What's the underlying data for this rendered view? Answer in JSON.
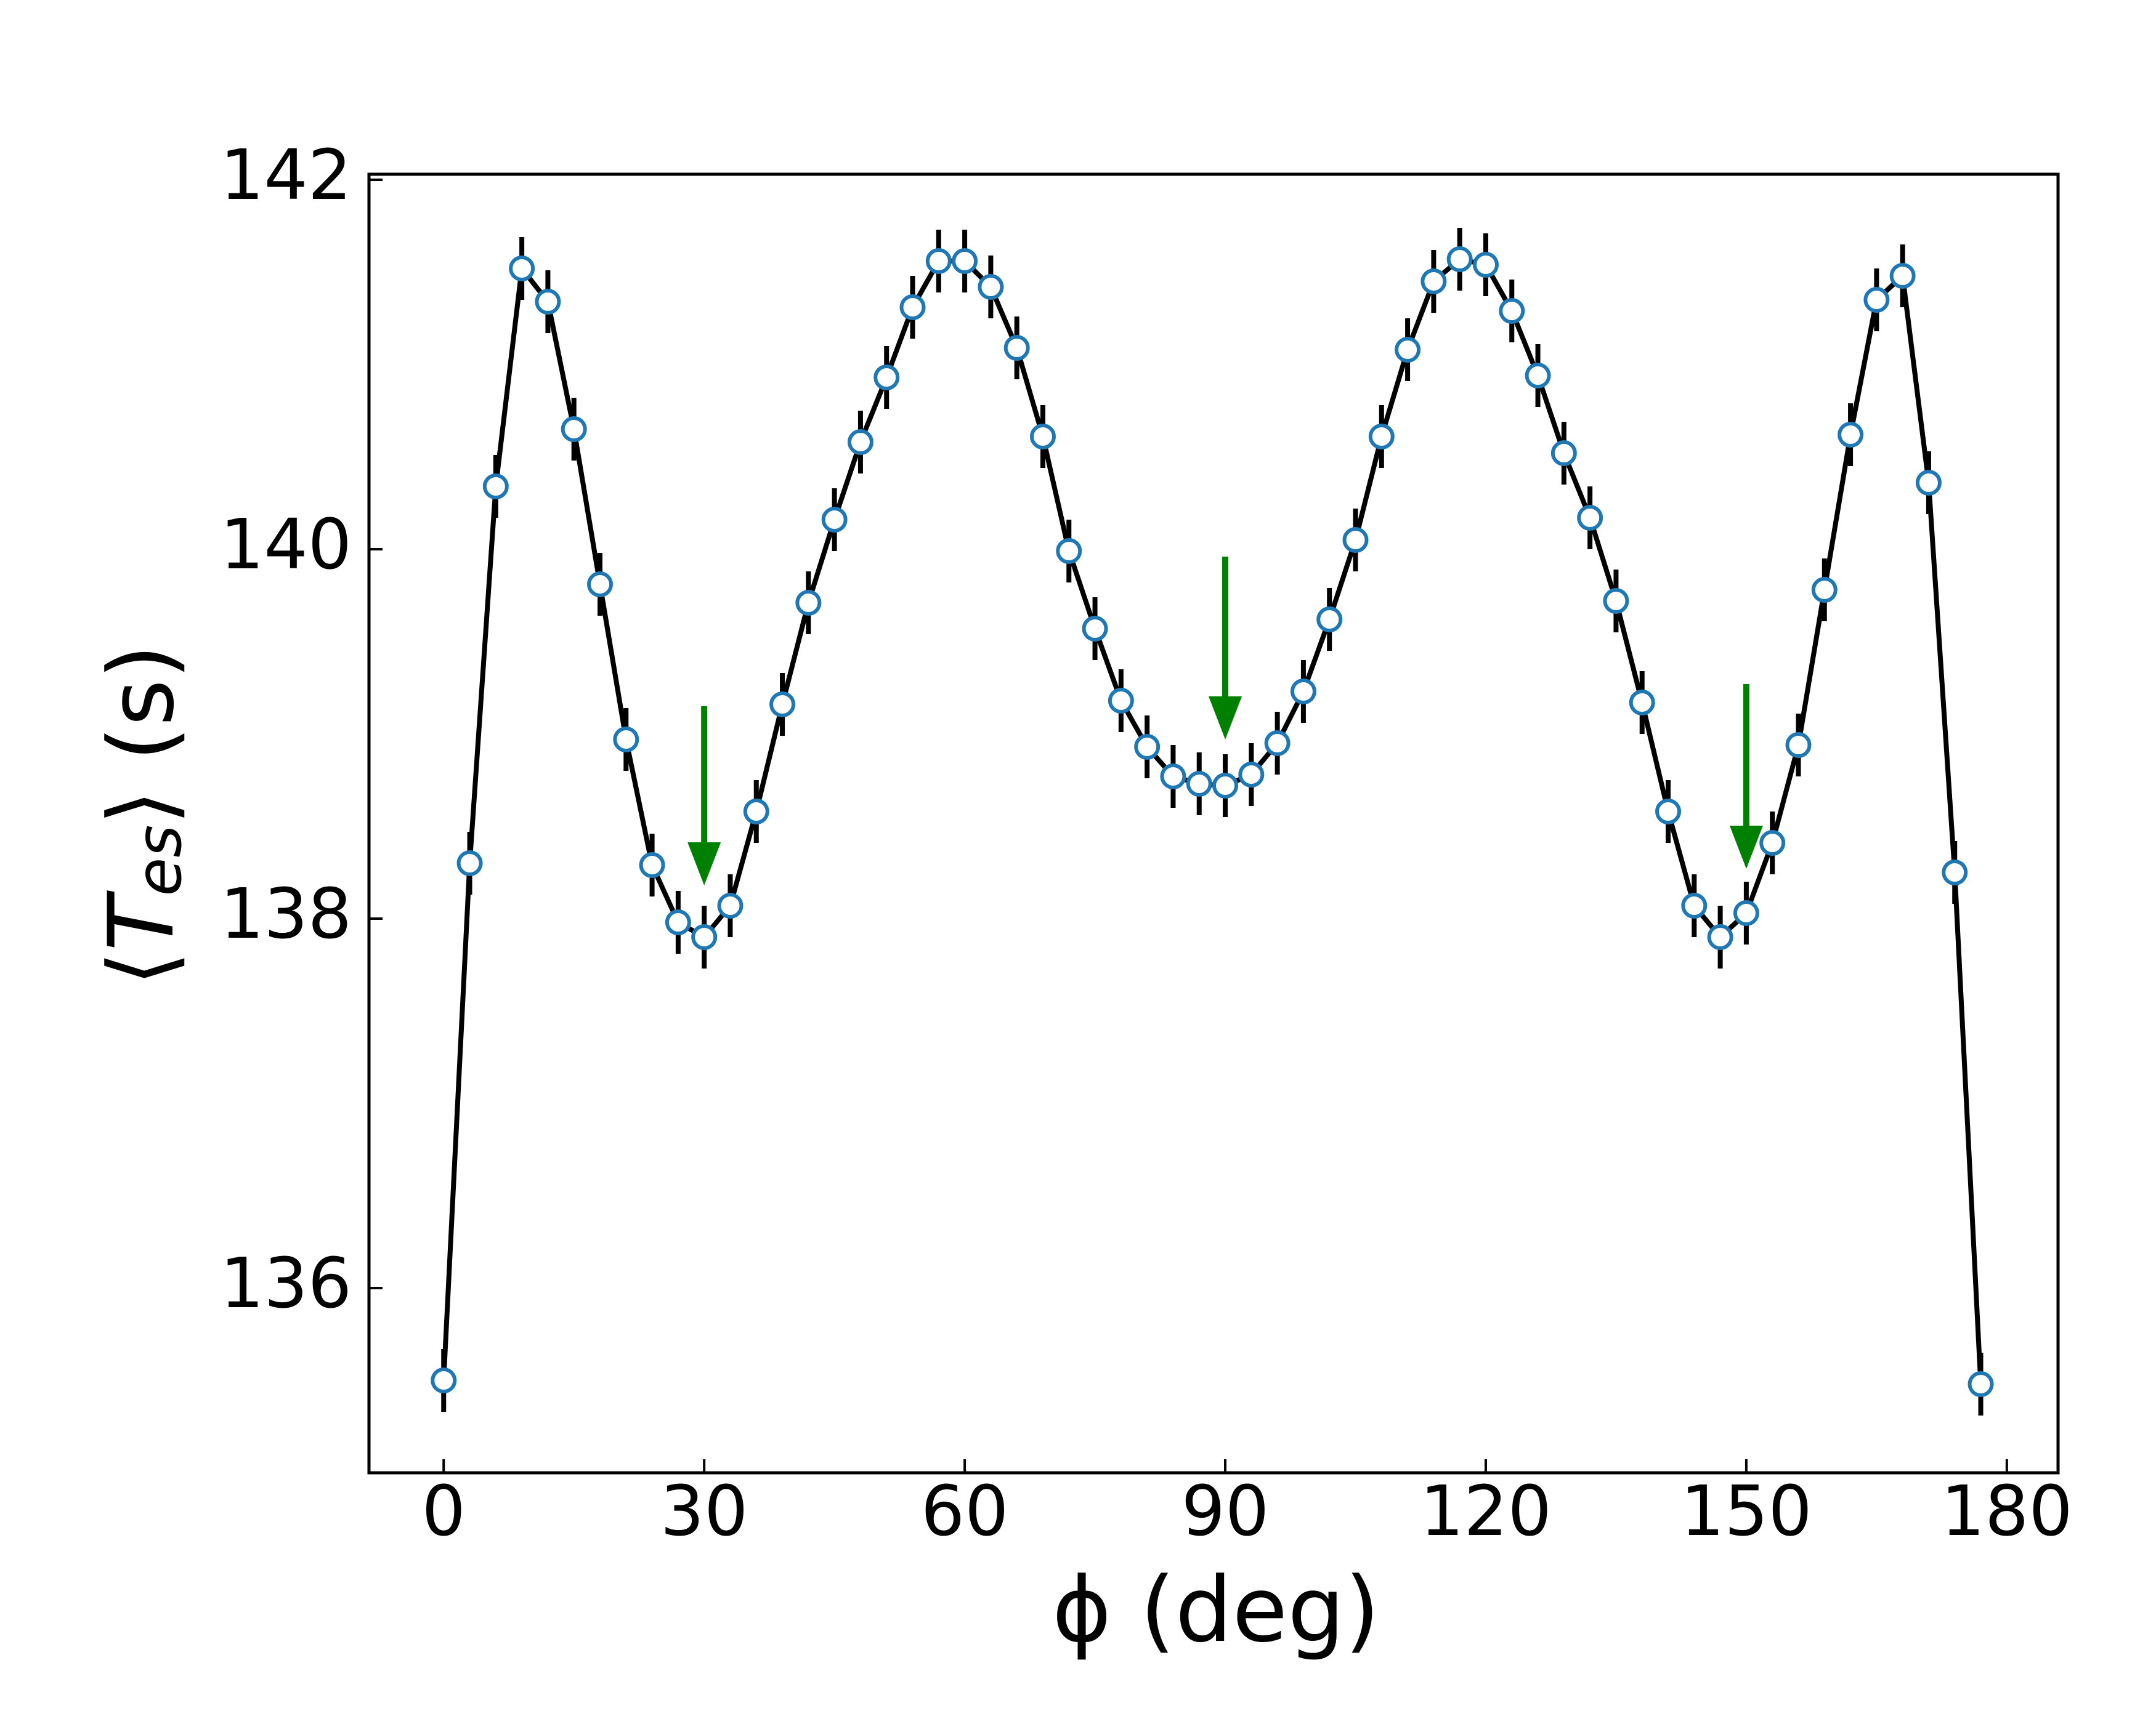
{
  "chart_data": {
    "type": "line",
    "xlabel": "ϕ (deg)",
    "ylabel": {
      "open": "⟨",
      "symbol": "T",
      "subscript": "es",
      "close": "⟩ (s)"
    },
    "series": [
      {
        "color": "#000000",
        "marker_color": "#1f77b4",
        "error_color": "#000000",
        "x": [
          0,
          3,
          6,
          9,
          12,
          15,
          18,
          21,
          24,
          27,
          30,
          33,
          36,
          39,
          42,
          45,
          48,
          51,
          54,
          57,
          60,
          63,
          66,
          69,
          72,
          75,
          78,
          81,
          84,
          87,
          90,
          93,
          96,
          99,
          102,
          105,
          108,
          111,
          114,
          117,
          120,
          123,
          126,
          129,
          132,
          135,
          138,
          141,
          144,
          147,
          150,
          153,
          156,
          159,
          162,
          165,
          168,
          171,
          174,
          177
        ],
        "values": [
          135.5,
          138.3,
          140.34,
          141.52,
          141.34,
          140.65,
          139.81,
          138.97,
          138.29,
          137.98,
          137.9,
          138.07,
          138.58,
          139.16,
          139.71,
          140.16,
          140.58,
          140.93,
          141.31,
          141.56,
          141.56,
          141.42,
          141.09,
          140.61,
          139.99,
          139.57,
          139.18,
          138.93,
          138.77,
          138.73,
          138.72,
          138.78,
          138.95,
          139.23,
          139.62,
          140.05,
          140.61,
          141.08,
          141.45,
          141.57,
          141.54,
          141.29,
          140.94,
          140.52,
          140.17,
          139.72,
          139.17,
          138.58,
          138.07,
          137.9,
          138.03,
          138.41,
          138.94,
          139.78,
          140.62,
          141.35,
          141.48,
          140.36,
          138.25,
          135.48
        ],
        "errors": [
          0.17,
          0.17,
          0.17,
          0.17,
          0.17,
          0.17,
          0.17,
          0.17,
          0.17,
          0.17,
          0.17,
          0.17,
          0.17,
          0.17,
          0.17,
          0.17,
          0.17,
          0.17,
          0.17,
          0.17,
          0.17,
          0.17,
          0.17,
          0.17,
          0.17,
          0.17,
          0.17,
          0.17,
          0.17,
          0.17,
          0.17,
          0.17,
          0.17,
          0.17,
          0.17,
          0.17,
          0.17,
          0.17,
          0.17,
          0.17,
          0.17,
          0.17,
          0.17,
          0.17,
          0.17,
          0.17,
          0.17,
          0.17,
          0.17,
          0.17,
          0.17,
          0.17,
          0.17,
          0.17,
          0.17,
          0.17,
          0.17,
          0.17,
          0.17,
          0.17
        ]
      }
    ],
    "annotations": [
      {
        "x": 30,
        "y_start": 139.15,
        "y_end": 138.18,
        "color": "#008000"
      },
      {
        "x": 90,
        "y_start": 139.96,
        "y_end": 138.97,
        "color": "#008000"
      },
      {
        "x": 150,
        "y_start": 139.27,
        "y_end": 138.27,
        "color": "#008000"
      }
    ],
    "xlim": [
      -8.6,
      185.9
    ],
    "ylim": [
      135,
      142.03
    ],
    "xticks": [
      0,
      30,
      60,
      90,
      120,
      150,
      180
    ],
    "yticks": [
      136,
      138,
      140,
      142
    ]
  }
}
